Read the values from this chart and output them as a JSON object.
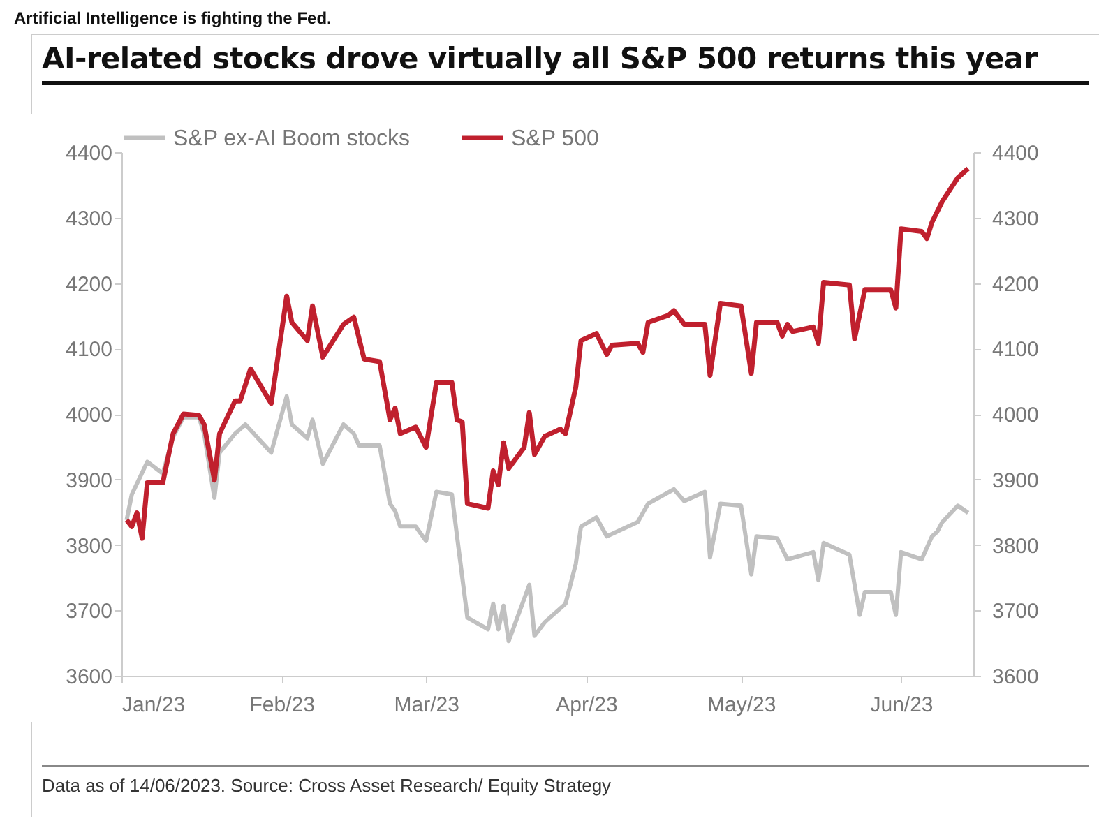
{
  "chart_data": {
    "type": "line",
    "title": "Artificial Intelligence is fighting the Fed.",
    "subtitle": "AI-related stocks drove virtually all S&P 500 returns this year",
    "annotations": [
      "Data as of 14/06/2023. Source: Cross Asset Research/ Equity Strategy"
    ],
    "xlim": [
      "2023-01-01",
      "2023-06-15"
    ],
    "xticks": [
      {
        "value": "2023-01-01",
        "label": "Jan/23"
      },
      {
        "value": "2023-02-01",
        "label": "Feb/23"
      },
      {
        "value": "2023-03-01",
        "label": "Mar/23"
      },
      {
        "value": "2023-04-01",
        "label": "Apr/23"
      },
      {
        "value": "2023-05-01",
        "label": "May/23"
      },
      {
        "value": "2023-06-01",
        "label": "Jun/23"
      }
    ],
    "ylim": [
      3600,
      4400
    ],
    "yticks": [
      3600,
      3700,
      3800,
      3900,
      4000,
      4100,
      4200,
      4300,
      4400
    ],
    "y2lim": [
      3600,
      4400
    ],
    "y2ticks": [
      3600,
      3700,
      3800,
      3900,
      4000,
      4100,
      4200,
      4300,
      4400
    ],
    "legend": "top",
    "grid": false,
    "line_style": "solid",
    "series": [
      {
        "name": "S&P ex-AI Boom stocks",
        "color": "#c0c0c0",
        "x": [
          "2023-01-02",
          "2023-01-03",
          "2023-01-06",
          "2023-01-09",
          "2023-01-11",
          "2023-01-13",
          "2023-01-16",
          "2023-01-17",
          "2023-01-19",
          "2023-01-20",
          "2023-01-23",
          "2023-01-25",
          "2023-01-30",
          "2023-02-02",
          "2023-02-03",
          "2023-02-06",
          "2023-02-07",
          "2023-02-09",
          "2023-02-13",
          "2023-02-15",
          "2023-02-16",
          "2023-02-20",
          "2023-02-22",
          "2023-02-23",
          "2023-02-24",
          "2023-02-27",
          "2023-03-01",
          "2023-03-03",
          "2023-03-06",
          "2023-03-07",
          "2023-03-09",
          "2023-03-13",
          "2023-03-14",
          "2023-03-15",
          "2023-03-16",
          "2023-03-17",
          "2023-03-21",
          "2023-03-22",
          "2023-03-24",
          "2023-03-28",
          "2023-03-30",
          "2023-03-31",
          "2023-04-03",
          "2023-04-05",
          "2023-04-11",
          "2023-04-13",
          "2023-04-18",
          "2023-04-20",
          "2023-04-24",
          "2023-04-25",
          "2023-04-27",
          "2023-05-01",
          "2023-05-03",
          "2023-05-04",
          "2023-05-08",
          "2023-05-10",
          "2023-05-15",
          "2023-05-16",
          "2023-05-17",
          "2023-05-22",
          "2023-05-24",
          "2023-05-25",
          "2023-05-30",
          "2023-05-31",
          "2023-06-01",
          "2023-06-05",
          "2023-06-07",
          "2023-06-08",
          "2023-06-09",
          "2023-06-12",
          "2023-06-14"
        ],
        "values": [
          3838,
          3877,
          3927,
          3909,
          3965,
          3995,
          3995,
          3970,
          3872,
          3941,
          3970,
          3984,
          3941,
          4027,
          3984,
          3963,
          3991,
          3924,
          3984,
          3970,
          3952,
          3952,
          3863,
          3852,
          3828,
          3828,
          3806,
          3881,
          3877,
          3813,
          3689,
          3671,
          3710,
          3671,
          3707,
          3653,
          3739,
          3661,
          3682,
          3710,
          3771,
          3828,
          3842,
          3813,
          3835,
          3863,
          3885,
          3867,
          3881,
          3781,
          3863,
          3860,
          3755,
          3813,
          3810,
          3778,
          3789,
          3746,
          3803,
          3785,
          3693,
          3728,
          3728,
          3693,
          3789,
          3778,
          3813,
          3820,
          3835,
          3860,
          3849
        ]
      },
      {
        "name": "S&P 500",
        "color": "#c0202e",
        "x": [
          "2023-01-02",
          "2023-01-03",
          "2023-01-04",
          "2023-01-05",
          "2023-01-06",
          "2023-01-09",
          "2023-01-11",
          "2023-01-13",
          "2023-01-16",
          "2023-01-17",
          "2023-01-19",
          "2023-01-20",
          "2023-01-23",
          "2023-01-24",
          "2023-01-26",
          "2023-01-30",
          "2023-02-02",
          "2023-02-03",
          "2023-02-06",
          "2023-02-07",
          "2023-02-09",
          "2023-02-13",
          "2023-02-15",
          "2023-02-17",
          "2023-02-20",
          "2023-02-22",
          "2023-02-23",
          "2023-02-24",
          "2023-02-27",
          "2023-03-01",
          "2023-03-03",
          "2023-03-06",
          "2023-03-07",
          "2023-03-08",
          "2023-03-09",
          "2023-03-13",
          "2023-03-14",
          "2023-03-15",
          "2023-03-16",
          "2023-03-17",
          "2023-03-20",
          "2023-03-21",
          "2023-03-22",
          "2023-03-24",
          "2023-03-27",
          "2023-03-28",
          "2023-03-30",
          "2023-03-31",
          "2023-04-03",
          "2023-04-05",
          "2023-04-06",
          "2023-04-11",
          "2023-04-12",
          "2023-04-13",
          "2023-04-17",
          "2023-04-18",
          "2023-04-20",
          "2023-04-24",
          "2023-04-25",
          "2023-04-27",
          "2023-05-01",
          "2023-05-03",
          "2023-05-04",
          "2023-05-08",
          "2023-05-09",
          "2023-05-10",
          "2023-05-11",
          "2023-05-15",
          "2023-05-16",
          "2023-05-17",
          "2023-05-22",
          "2023-05-23",
          "2023-05-25",
          "2023-05-30",
          "2023-05-31",
          "2023-06-01",
          "2023-06-05",
          "2023-06-06",
          "2023-06-07",
          "2023-06-09",
          "2023-06-12",
          "2023-06-14"
        ],
        "values": [
          3838,
          3828,
          3849,
          3810,
          3895,
          3895,
          3970,
          4000,
          3998,
          3984,
          3899,
          3970,
          4020,
          4020,
          4069,
          4016,
          4180,
          4140,
          4112,
          4165,
          4087,
          4137,
          4148,
          4084,
          4080,
          3991,
          4009,
          3970,
          3980,
          3949,
          4048,
          4048,
          3991,
          3988,
          3863,
          3856,
          3913,
          3892,
          3956,
          3917,
          3949,
          4002,
          3938,
          3966,
          3977,
          3970,
          4041,
          4112,
          4123,
          4091,
          4105,
          4108,
          4094,
          4140,
          4151,
          4158,
          4137,
          4137,
          4059,
          4169,
          4165,
          4062,
          4140,
          4140,
          4119,
          4137,
          4126,
          4133,
          4108,
          4201,
          4197,
          4115,
          4190,
          4190,
          4162,
          4283,
          4279,
          4268,
          4293,
          4325,
          4361,
          4375
        ]
      }
    ]
  }
}
